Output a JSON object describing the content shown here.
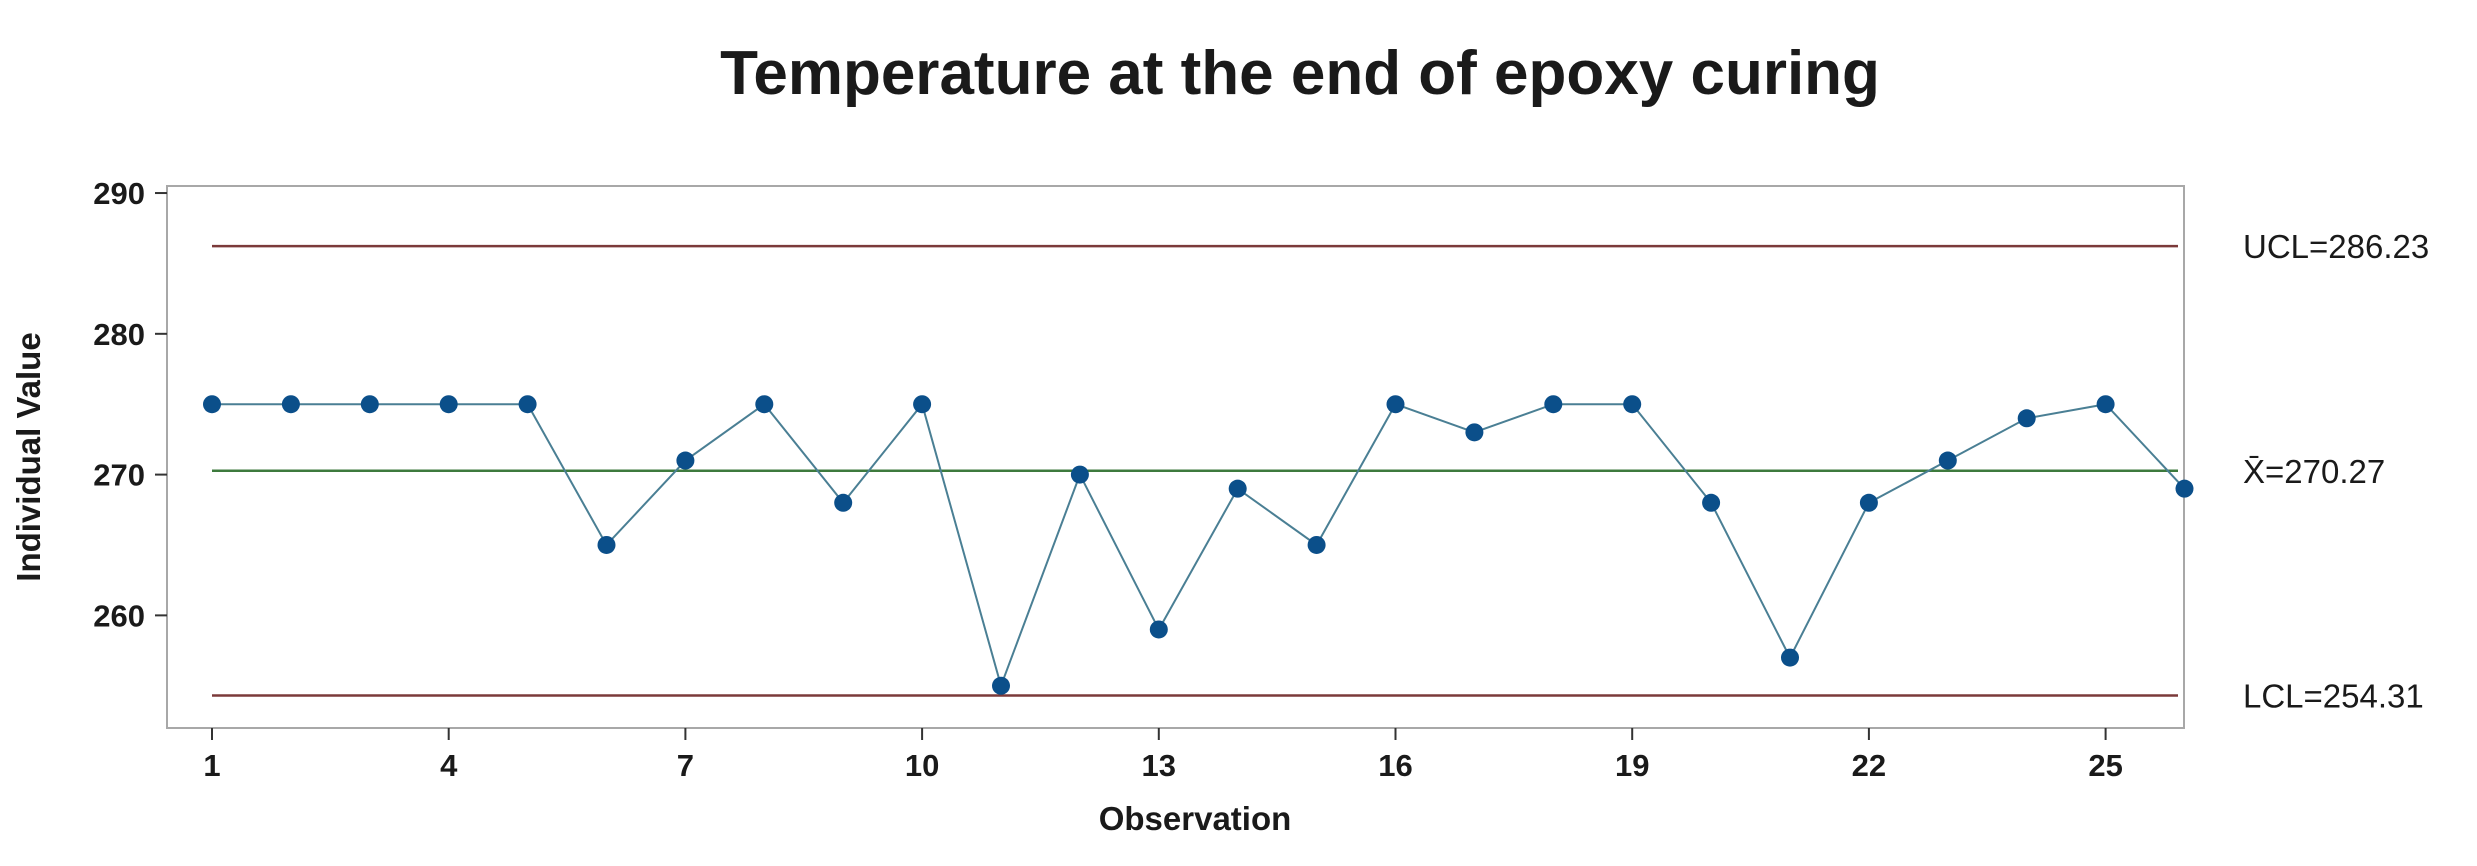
{
  "chart_data": {
    "type": "line",
    "title": "Temperature at the end of epoxy curing",
    "xlabel": "Observation",
    "ylabel": "Individual Value",
    "x": [
      1,
      2,
      3,
      4,
      5,
      6,
      7,
      8,
      9,
      10,
      11,
      12,
      13,
      14,
      15,
      16,
      17,
      18,
      19,
      20,
      21,
      22,
      23,
      24,
      25,
      26
    ],
    "series": [
      {
        "values": [
          275,
          275,
          275,
          275,
          275,
          265,
          271,
          275,
          268,
          275,
          255,
          270,
          259,
          269,
          265,
          275,
          273,
          275,
          275,
          268,
          257,
          268,
          271,
          274,
          275,
          269
        ],
        "color": "#0b4f8a"
      }
    ],
    "xticks": [
      "1",
      "4",
      "7",
      "10",
      "13",
      "16",
      "19",
      "22",
      "25"
    ],
    "yticks": [
      "260",
      "270",
      "280",
      "290"
    ],
    "ylim": [
      252,
      290.5
    ],
    "reference_lines": [
      {
        "label": "UCL=286.23",
        "value": 286.23,
        "color": "#7b3a3a"
      },
      {
        "label": "X̄=270.27",
        "value": 270.27,
        "color": "#3d7a3d"
      },
      {
        "label": "LCL=254.31",
        "value": 254.31,
        "color": "#7b3a3a"
      }
    ],
    "grid": false,
    "line_color": "#4a7f94",
    "marker_color": "#0b4f8a"
  }
}
